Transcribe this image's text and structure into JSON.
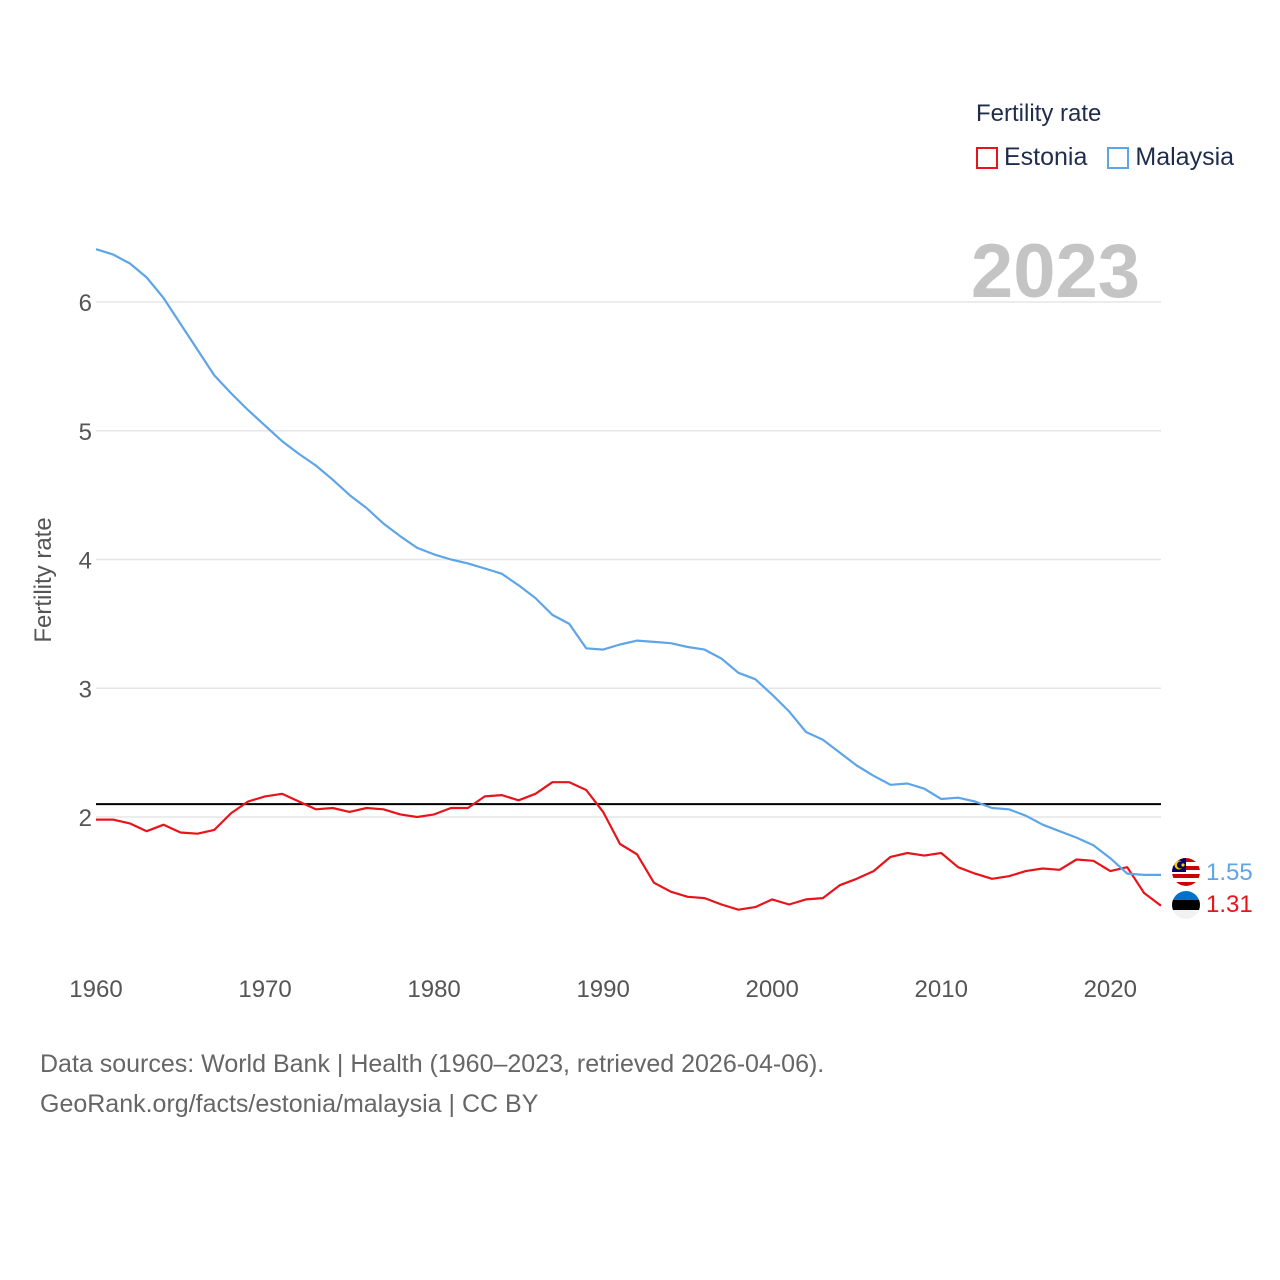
{
  "colors": {
    "estonia": "#e8141b",
    "malaysia": "#5ea5e8",
    "reference": "#000000",
    "grid": "#e6e6e6"
  },
  "legend": {
    "title": "Fertility rate",
    "items": [
      {
        "label": "Estonia",
        "color": "#e8141b"
      },
      {
        "label": "Malaysia",
        "color": "#5ea5e8"
      }
    ]
  },
  "current_year": "2023",
  "end_labels": {
    "malaysia": "1.55",
    "estonia": "1.31"
  },
  "flags": [
    "malaysia-flag-icon",
    "estonia-flag-icon"
  ],
  "footer": {
    "line1": "Data sources: World Bank | Health (1960–2023, retrieved 2026-04-06).",
    "line2": "GeoRank.org/facts/estonia/malaysia | CC BY"
  },
  "chart_data": {
    "type": "line",
    "title": "",
    "xlabel": "",
    "ylabel": "Fertility rate",
    "xlim": [
      1960,
      2023
    ],
    "ylim": [
      1.0,
      6.5
    ],
    "xticks": [
      1960,
      1970,
      1980,
      1990,
      2000,
      2010,
      2020
    ],
    "yticks": [
      2,
      3,
      4,
      5,
      6
    ],
    "reference_line": {
      "y": 2.1,
      "label": ""
    },
    "x": [
      1960,
      1961,
      1962,
      1963,
      1964,
      1965,
      1966,
      1967,
      1968,
      1969,
      1970,
      1971,
      1972,
      1973,
      1974,
      1975,
      1976,
      1977,
      1978,
      1979,
      1980,
      1981,
      1982,
      1983,
      1984,
      1985,
      1986,
      1987,
      1988,
      1989,
      1990,
      1991,
      1992,
      1993,
      1994,
      1995,
      1996,
      1997,
      1998,
      1999,
      2000,
      2001,
      2002,
      2003,
      2004,
      2005,
      2006,
      2007,
      2008,
      2009,
      2010,
      2011,
      2012,
      2013,
      2014,
      2015,
      2016,
      2017,
      2018,
      2019,
      2020,
      2021,
      2022,
      2023
    ],
    "series": [
      {
        "name": "Estonia",
        "color": "#e8141b",
        "values": [
          1.98,
          1.98,
          1.95,
          1.89,
          1.94,
          1.88,
          1.87,
          1.9,
          2.03,
          2.12,
          2.16,
          2.18,
          2.12,
          2.06,
          2.07,
          2.04,
          2.07,
          2.06,
          2.02,
          2.0,
          2.02,
          2.07,
          2.07,
          2.16,
          2.17,
          2.13,
          2.18,
          2.27,
          2.27,
          2.21,
          2.04,
          1.79,
          1.71,
          1.49,
          1.42,
          1.38,
          1.37,
          1.32,
          1.28,
          1.3,
          1.36,
          1.32,
          1.36,
          1.37,
          1.47,
          1.52,
          1.58,
          1.69,
          1.72,
          1.7,
          1.72,
          1.61,
          1.56,
          1.52,
          1.54,
          1.58,
          1.6,
          1.59,
          1.67,
          1.66,
          1.58,
          1.61,
          1.41,
          1.31
        ]
      },
      {
        "name": "Malaysia",
        "color": "#5ea5e8",
        "values": [
          6.41,
          6.37,
          6.3,
          6.19,
          6.03,
          5.83,
          5.63,
          5.43,
          5.29,
          5.16,
          5.04,
          4.92,
          4.82,
          4.73,
          4.62,
          4.5,
          4.4,
          4.28,
          4.18,
          4.09,
          4.04,
          4.0,
          3.97,
          3.93,
          3.89,
          3.8,
          3.7,
          3.57,
          3.5,
          3.31,
          3.3,
          3.34,
          3.37,
          3.36,
          3.35,
          3.32,
          3.3,
          3.23,
          3.12,
          3.07,
          2.95,
          2.82,
          2.66,
          2.6,
          2.5,
          2.4,
          2.32,
          2.25,
          2.26,
          2.22,
          2.14,
          2.15,
          2.12,
          2.07,
          2.06,
          2.01,
          1.94,
          1.89,
          1.84,
          1.78,
          1.68,
          1.56,
          1.55,
          1.55
        ]
      }
    ]
  }
}
